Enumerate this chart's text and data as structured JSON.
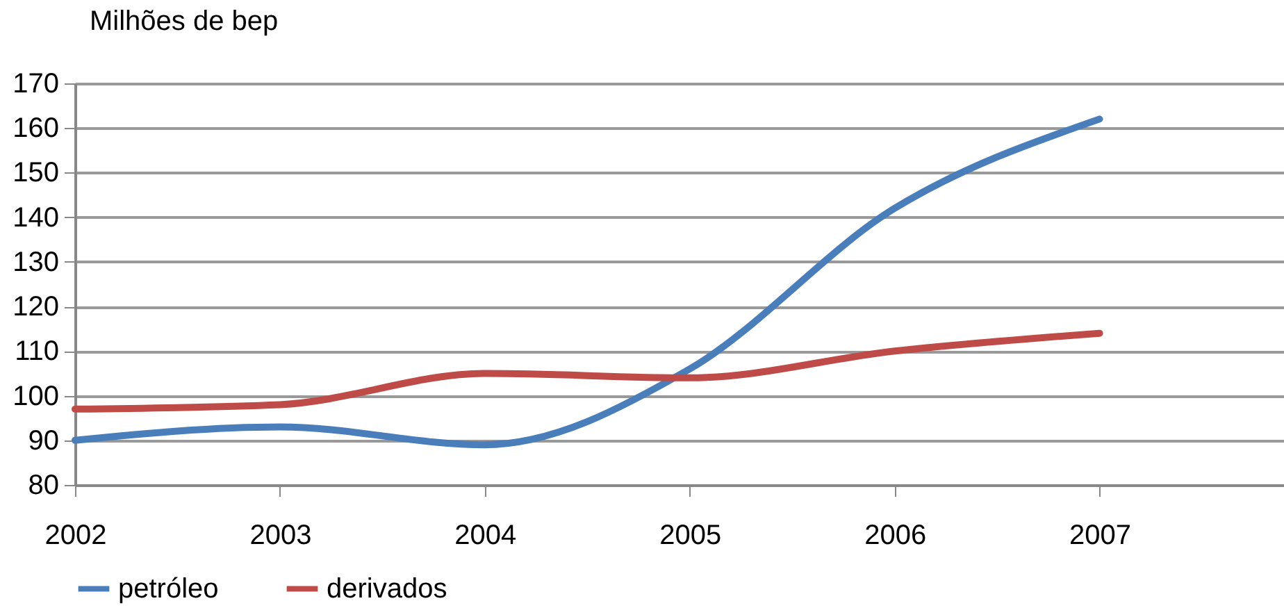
{
  "chart_data": {
    "type": "line",
    "ylabel": "Milhões de bep",
    "x": [
      2002,
      2003,
      2004,
      2005,
      2006,
      2007
    ],
    "series": [
      {
        "name": "petróleo",
        "color": "#4a7ebb",
        "values": [
          90,
          93,
          89,
          106,
          142,
          162
        ]
      },
      {
        "name": "derivados",
        "color": "#be4b48",
        "values": [
          97,
          98,
          105,
          104,
          110,
          114
        ]
      }
    ],
    "xlim": [
      2002,
      2007.9
    ],
    "xticks": [
      2002,
      2003,
      2004,
      2005,
      2006,
      2007
    ],
    "ylim": [
      80,
      170
    ],
    "yticks": [
      80,
      90,
      100,
      110,
      120,
      130,
      140,
      150,
      160,
      170
    ],
    "grid": "y",
    "legend": "bottom",
    "marker": "none",
    "line_style": "solid"
  }
}
